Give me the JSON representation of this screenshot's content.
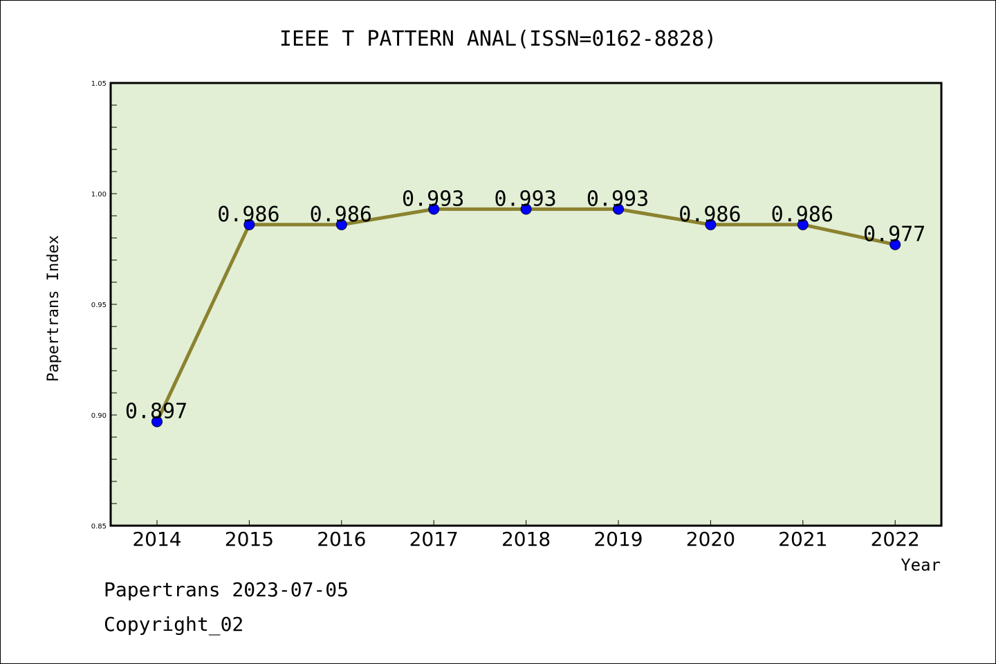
{
  "chart_data": {
    "type": "line",
    "title": "IEEE T PATTERN ANAL(ISSN=0162-8828)",
    "xlabel": "Year",
    "ylabel": "Papertrans Index",
    "categories": [
      "2014",
      "2015",
      "2016",
      "2017",
      "2018",
      "2019",
      "2020",
      "2021",
      "2022"
    ],
    "values": [
      0.897,
      0.986,
      0.986,
      0.993,
      0.993,
      0.993,
      0.986,
      0.986,
      0.977
    ],
    "data_labels": [
      "0.897",
      "0.986",
      "0.986",
      "0.993",
      "0.993",
      "0.993",
      "0.986",
      "0.986",
      "0.977"
    ],
    "ylim": [
      0.85,
      1.05
    ],
    "yticks": [
      "0.85",
      "0.90",
      "0.95",
      "1.00",
      "1.05"
    ],
    "grid": false,
    "colors": {
      "line": "#8b8230",
      "marker": "#0000ff",
      "plot_background": "#e2efd5",
      "axes": "#000000"
    }
  },
  "footer": {
    "line1": "Papertrans 2023-07-05",
    "line2": "Copyright_02"
  }
}
